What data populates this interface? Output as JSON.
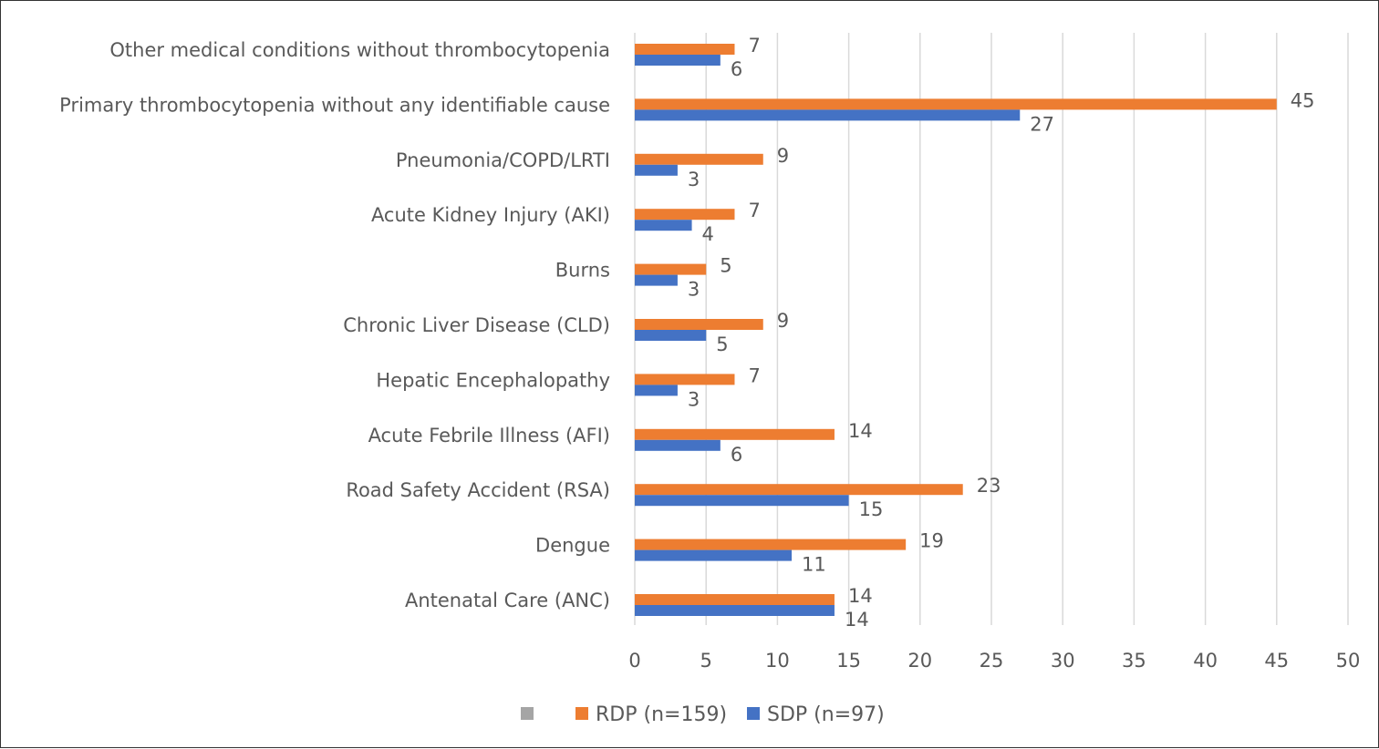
{
  "chart_data": {
    "type": "bar",
    "orientation": "horizontal",
    "title": "",
    "xlabel": "",
    "ylabel": "",
    "xlim": [
      0,
      50
    ],
    "xticks": [
      0,
      5,
      10,
      15,
      20,
      25,
      30,
      35,
      40,
      45,
      50
    ],
    "grid": "vertical",
    "legend_position": "bottom",
    "categories": [
      "Other medical conditions without thrombocytopenia",
      "Primary thrombocytopenia without any identifiable  cause",
      "Pneumonia/COPD/LRTI",
      "Acute Kidney Injury (AKI)",
      "Burns",
      "Chronic Liver Disease (CLD)",
      "Hepatic Encephalopathy",
      "Acute Febrile Illness (AFI)",
      "Road Safety Accident (RSA)",
      "Dengue",
      "Antenatal Care (ANC)"
    ],
    "series": [
      {
        "name": "RDP (n=159)",
        "color": "#ED7D31",
        "values": [
          7,
          45,
          9,
          7,
          5,
          9,
          7,
          14,
          23,
          19,
          14
        ]
      },
      {
        "name": "SDP (n=97)",
        "color": "#4472C4",
        "values": [
          6,
          27,
          3,
          4,
          3,
          5,
          3,
          6,
          15,
          11,
          14
        ]
      }
    ],
    "legend_extra_swatch_color": "#A5A5A5"
  }
}
